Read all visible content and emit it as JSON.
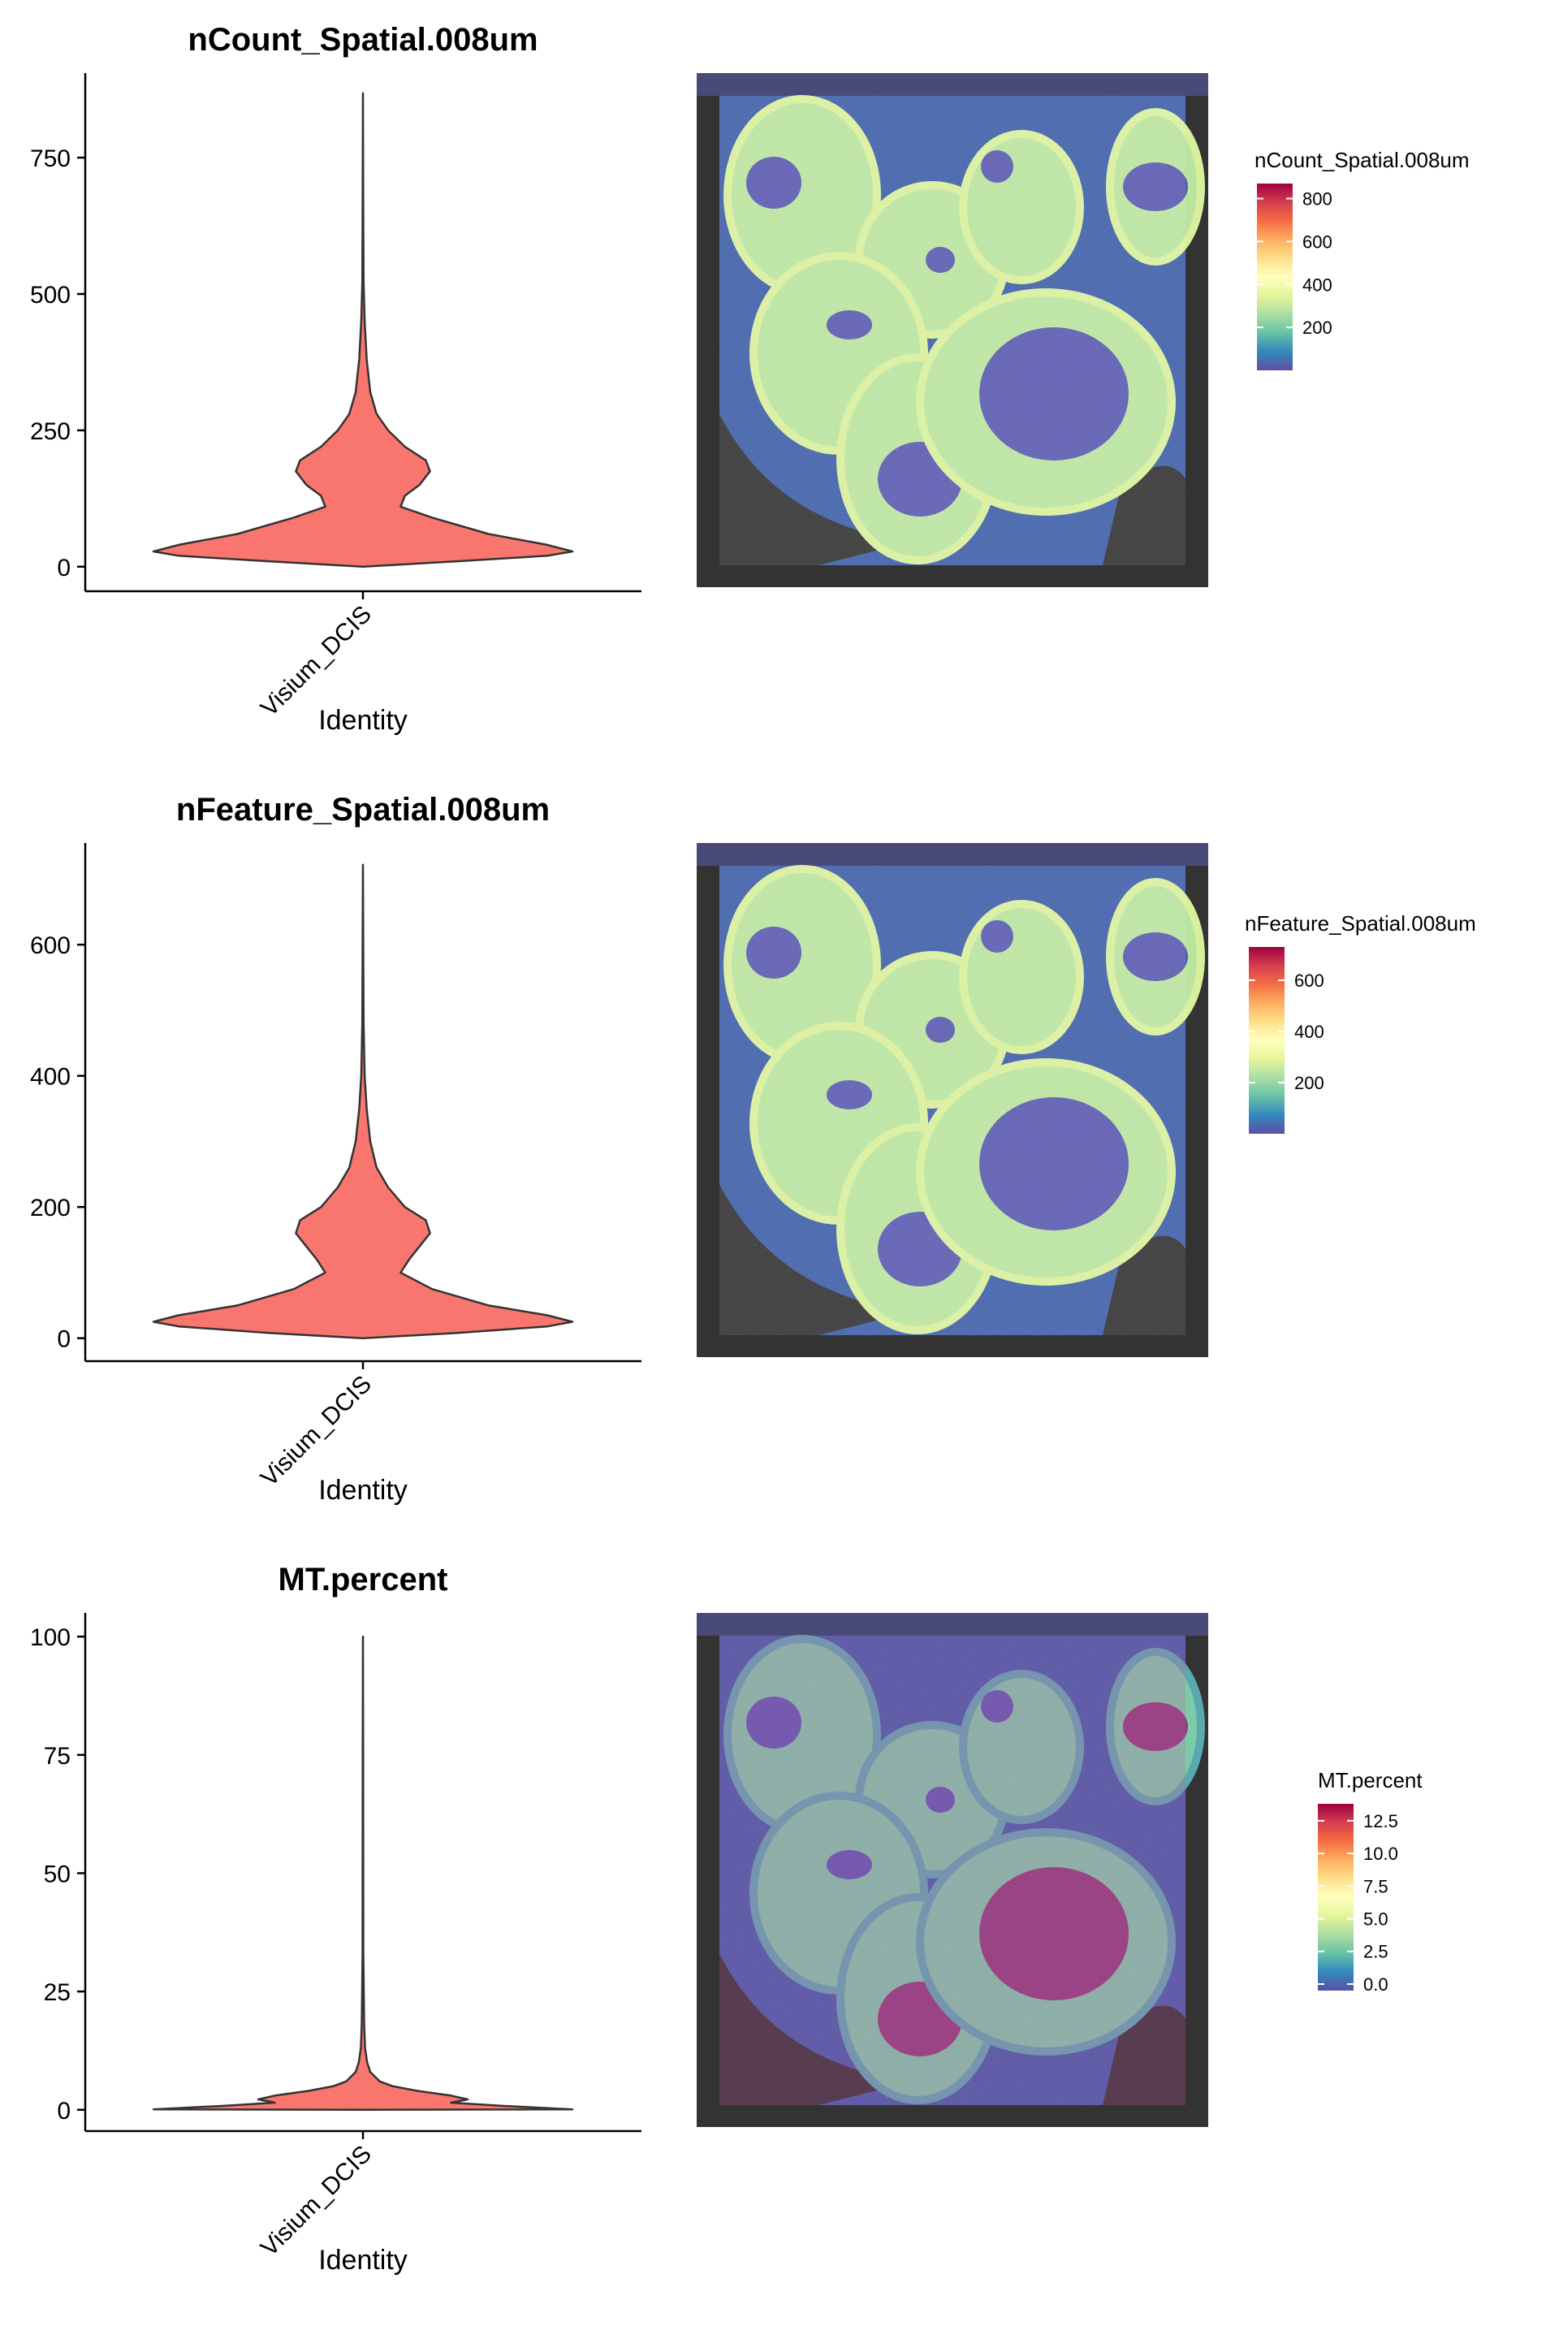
{
  "chart_data": [
    {
      "type": "violin",
      "title": "nCount_Spatial.008um",
      "xlabel": "Identity",
      "ylabel": "",
      "categories": [
        "Visium_DCIS"
      ],
      "ylim": [
        -45,
        905
      ],
      "yticks": [
        0,
        250,
        500,
        750
      ],
      "fill": "#F8766D",
      "violin_profile": [
        [
          0,
          0
        ],
        [
          10,
          0.45
        ],
        [
          20,
          0.88
        ],
        [
          28,
          1.0
        ],
        [
          40,
          0.88
        ],
        [
          60,
          0.6
        ],
        [
          90,
          0.33
        ],
        [
          110,
          0.18
        ],
        [
          130,
          0.2
        ],
        [
          150,
          0.27
        ],
        [
          175,
          0.32
        ],
        [
          195,
          0.3
        ],
        [
          220,
          0.2
        ],
        [
          250,
          0.12
        ],
        [
          280,
          0.065
        ],
        [
          320,
          0.035
        ],
        [
          380,
          0.018
        ],
        [
          450,
          0.008
        ],
        [
          520,
          0.003
        ],
        [
          650,
          0.0015
        ],
        [
          868,
          0
        ]
      ],
      "spatial_panel": {
        "legend_title": "nCount_Spatial.008um",
        "legend_range": [
          0,
          870
        ],
        "legend_ticks": [
          200,
          400,
          600,
          800
        ],
        "colormap": "Spectral (reversed)"
      }
    },
    {
      "type": "violin",
      "title": "nFeature_Spatial.008um",
      "xlabel": "Identity",
      "ylabel": "",
      "categories": [
        "Visium_DCIS"
      ],
      "ylim": [
        -35,
        755
      ],
      "yticks": [
        0,
        200,
        400,
        600
      ],
      "fill": "#F8766D",
      "violin_profile": [
        [
          0,
          0
        ],
        [
          8,
          0.45
        ],
        [
          18,
          0.88
        ],
        [
          25,
          1.0
        ],
        [
          35,
          0.88
        ],
        [
          50,
          0.6
        ],
        [
          75,
          0.33
        ],
        [
          100,
          0.18
        ],
        [
          120,
          0.22
        ],
        [
          140,
          0.27
        ],
        [
          160,
          0.32
        ],
        [
          180,
          0.3
        ],
        [
          200,
          0.2
        ],
        [
          230,
          0.12
        ],
        [
          260,
          0.065
        ],
        [
          300,
          0.035
        ],
        [
          350,
          0.018
        ],
        [
          400,
          0.008
        ],
        [
          480,
          0.003
        ],
        [
          600,
          0.0015
        ],
        [
          722,
          0
        ]
      ],
      "spatial_panel": {
        "legend_title": "nFeature_Spatial.008um",
        "legend_range": [
          0,
          730
        ],
        "legend_ticks": [
          200,
          400,
          600
        ],
        "colormap": "Spectral (reversed)"
      }
    },
    {
      "type": "violin",
      "title": "MT.percent",
      "xlabel": "Identity",
      "ylabel": "",
      "categories": [
        "Visium_DCIS"
      ],
      "ylim": [
        -4.5,
        105
      ],
      "yticks": [
        0,
        25,
        50,
        75,
        100
      ],
      "fill": "#F8766D",
      "violin_profile": [
        [
          0,
          0
        ],
        [
          0.1,
          1.0
        ],
        [
          0.8,
          0.68
        ],
        [
          1.5,
          0.42
        ],
        [
          2.2,
          0.5
        ],
        [
          3,
          0.42
        ],
        [
          4,
          0.26
        ],
        [
          5,
          0.14
        ],
        [
          6,
          0.08
        ],
        [
          8,
          0.035
        ],
        [
          10,
          0.02
        ],
        [
          13,
          0.01
        ],
        [
          18,
          0.006
        ],
        [
          25,
          0.004
        ],
        [
          33,
          0.002
        ],
        [
          50,
          0.0015
        ],
        [
          75,
          0.001
        ],
        [
          100,
          0
        ]
      ],
      "spatial_panel": {
        "legend_title": "MT.percent",
        "legend_range": [
          -0.5,
          13.8
        ],
        "legend_ticks": [
          0.0,
          2.5,
          5.0,
          7.5,
          10.0,
          12.5
        ],
        "legend_tick_labels": [
          "0.0",
          "2.5",
          "5.0",
          "7.5",
          "10.0",
          "12.5"
        ],
        "colormap": "Spectral (reversed)"
      }
    }
  ]
}
